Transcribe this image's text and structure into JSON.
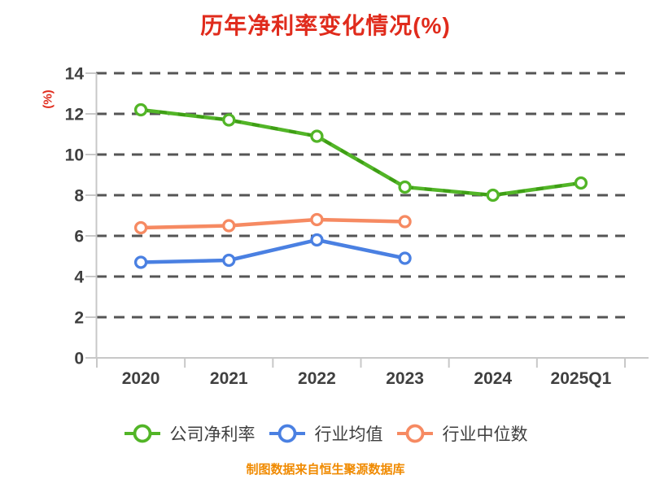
{
  "title": "历年净利率变化情况(%)",
  "footer": "制图数据来自恒生聚源数据库",
  "colors": {
    "title": "#E02B1C",
    "ylabel": "#E02B1C",
    "footer": "#F08A00",
    "text": "#3F3F3F",
    "axis_line": "#C8C8C8",
    "gridline": "#555555",
    "company": "#52B527",
    "company_dash_overlay": "#3E9E15",
    "industry_avg": "#4A80E2",
    "industry_median": "#F68A62",
    "marker_fill": "#FFFFFF",
    "background": "#FFFFFF"
  },
  "chart_data": {
    "type": "line",
    "title": "历年净利率变化情况(%)",
    "xlabel": "",
    "ylabel": "(%)",
    "categories": [
      "2020",
      "2021",
      "2022",
      "2023",
      "2024",
      "2025Q1"
    ],
    "series": [
      {
        "name": "公司净利率",
        "color_key": "company",
        "values": [
          12.2,
          11.7,
          10.9,
          8.4,
          8.0,
          8.6
        ]
      },
      {
        "name": "行业均值",
        "color_key": "industry_avg",
        "values": [
          4.7,
          4.8,
          5.8,
          4.9
        ]
      },
      {
        "name": "行业中位数",
        "color_key": "industry_median",
        "values": [
          6.4,
          6.5,
          6.8,
          6.7
        ]
      }
    ],
    "ylim": [
      0,
      14
    ],
    "yticks": [
      0,
      2,
      4,
      6,
      8,
      10,
      12,
      14
    ],
    "grid": "horizontal-dashed",
    "legend_position": "bottom",
    "marker_style": "circle-white-core"
  }
}
